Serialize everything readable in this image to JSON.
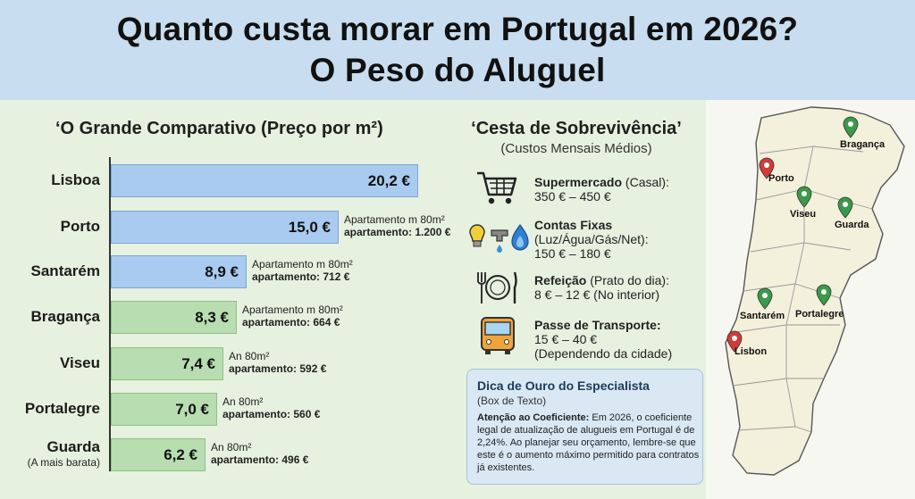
{
  "header": {
    "title_line1": "Quanto custa morar em Portugal em 2026?",
    "title_line2": "O Peso do Aluguel"
  },
  "chart_data": {
    "type": "bar",
    "title": "‘O Grande Comparativo (Preço por m²)",
    "categories": [
      "Lisboa",
      "Porto",
      "Santarém",
      "Bragança",
      "Viseu",
      "Portalegre",
      "Guarda"
    ],
    "values": [
      20.2,
      15.0,
      8.9,
      8.3,
      7.4,
      7.0,
      6.2
    ],
    "value_labels": [
      "20,2 €",
      "15,0 €",
      "8,9 €",
      "8,3 €",
      "7,4 €",
      "7,0 €",
      "6,2 €"
    ],
    "colors": [
      "#a9cbef",
      "#a9cbef",
      "#a9cbef",
      "#b8ddb0",
      "#b8ddb0",
      "#b8ddb0",
      "#b8ddb0"
    ],
    "guarda_sub": "(A mais barata)",
    "notes": [
      null,
      {
        "line1": "Apartamento m 80m²",
        "line2": "apartamento: 1.200 €"
      },
      {
        "line1": "Apartamento m 80m²",
        "line2": "apartamento: 712 €"
      },
      {
        "line1": "Apartamento m 80m²",
        "line2": "apartamento: 664 €"
      },
      {
        "line1": "An 80m²",
        "line2": "apartamento: 592 €"
      },
      {
        "line1": "An 80m²",
        "line2": "apartamento: 560 €"
      },
      {
        "line1": "An 80m²",
        "line2": "apartamento: 496 €"
      }
    ]
  },
  "basket": {
    "title": "‘Cesta de Sobrevivência’",
    "subtitle": "(Custos Mensais Médios)",
    "items": [
      {
        "icon": "shopping-cart-icon",
        "heading": "Supermercado",
        "heading_rest": " (Casal):",
        "line2": "350 € – 450 €",
        "line3": ""
      },
      {
        "icon": "utilities-icon",
        "heading": "Contas Fixas",
        "heading_rest": "",
        "line2": "(Luz/Água/Gás/Net):",
        "line3": "150 € – 180 €"
      },
      {
        "icon": "plate-icon",
        "heading": "Refeição",
        "heading_rest": " (Prato do dia):",
        "line2": "8 € – 12 € (No interior)",
        "line3": ""
      },
      {
        "icon": "bus-icon",
        "heading": "Passe de Transporte:",
        "heading_rest": "",
        "line2": "15 € – 40 €",
        "line3": "(Dependendo da cidade)"
      }
    ]
  },
  "tip": {
    "title": "Dica de Ouro do Especialista",
    "subtitle": "(Box de Texto)",
    "bold": "Atenção ao Coeficiente:",
    "body": " Em 2026, o coeficiente legal de atualização de alugueis em Portugal é de 2,24%. Ao planejar seu orçamento, lembre-se que este é o aumento máximo permitido para contratos já existentes."
  },
  "map": {
    "pins": [
      {
        "label": "Bragança",
        "color": "#3a9a4a"
      },
      {
        "label": "Porto",
        "color": "#d23a3a"
      },
      {
        "label": "Viseu",
        "color": "#3a9a4a"
      },
      {
        "label": "Guarda",
        "color": "#3a9a4a"
      },
      {
        "label": "Santarém",
        "color": "#3a9a4a"
      },
      {
        "label": "Portalegre",
        "color": "#3a9a4a"
      },
      {
        "label": "Lisbon",
        "color": "#d23a3a"
      }
    ]
  }
}
